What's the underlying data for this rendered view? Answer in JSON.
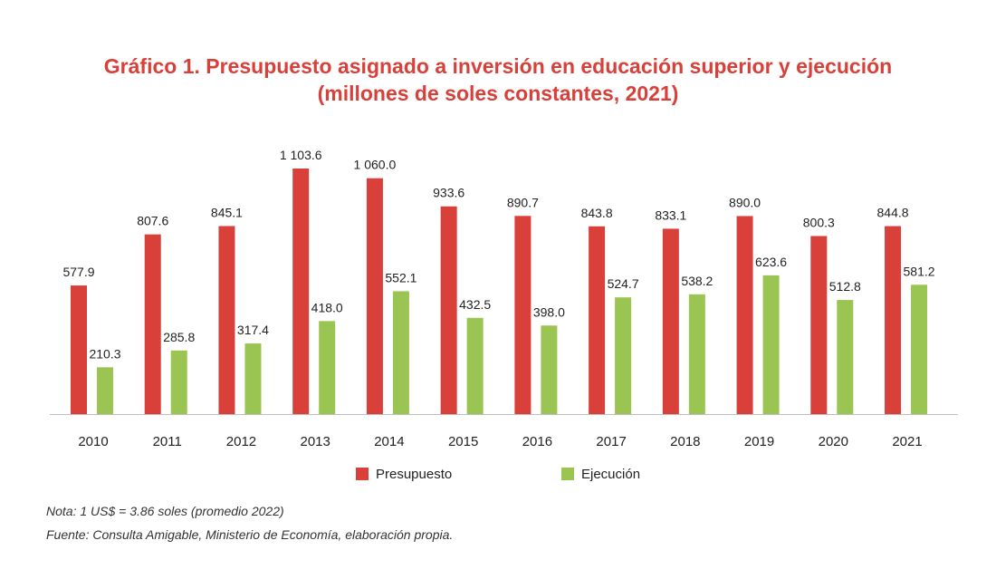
{
  "title_line1": "Gráfico 1. Presupuesto asignado a inversión en educación superior y ejecución",
  "title_line2": "(millones de soles constantes, 2021)",
  "note": "Nota: 1 US$ = 3.86 soles (promedio 2022)",
  "source": "Fuente: Consulta Amigable, Ministerio de Economía, elaboración propia.",
  "colors": {
    "title": "#d9403a",
    "presupuesto": "#d9403a",
    "ejecucion": "#9bc553",
    "axis": "#bfbfbf",
    "text": "#222222"
  },
  "chart_data": {
    "type": "bar",
    "categories": [
      "2010",
      "2011",
      "2012",
      "2013",
      "2014",
      "2015",
      "2016",
      "2017",
      "2018",
      "2019",
      "2020",
      "2021"
    ],
    "series": [
      {
        "name": "Presupuesto",
        "values": [
          577.9,
          807.6,
          845.1,
          1103.6,
          1060.0,
          933.6,
          890.7,
          843.8,
          833.1,
          890.0,
          800.3,
          844.8
        ],
        "labels": [
          "577.9",
          "807.6",
          "845.1",
          "1 103.6",
          "1 060.0",
          "933.6",
          "890.7",
          "843.8",
          "833.1",
          "890.0",
          "800.3",
          "844.8"
        ]
      },
      {
        "name": "Ejecución",
        "values": [
          210.3,
          285.8,
          317.4,
          418.0,
          552.1,
          432.5,
          398.0,
          524.7,
          538.2,
          623.6,
          512.8,
          581.2
        ],
        "labels": [
          "210.3",
          "285.8",
          "317.4",
          "418.0",
          "552.1",
          "432.5",
          "398.0",
          "524.7",
          "538.2",
          "623.6",
          "512.8",
          "581.2"
        ]
      }
    ],
    "ylim": [
      0,
      1103.6
    ],
    "grid": false,
    "legend": "bottom-center"
  }
}
